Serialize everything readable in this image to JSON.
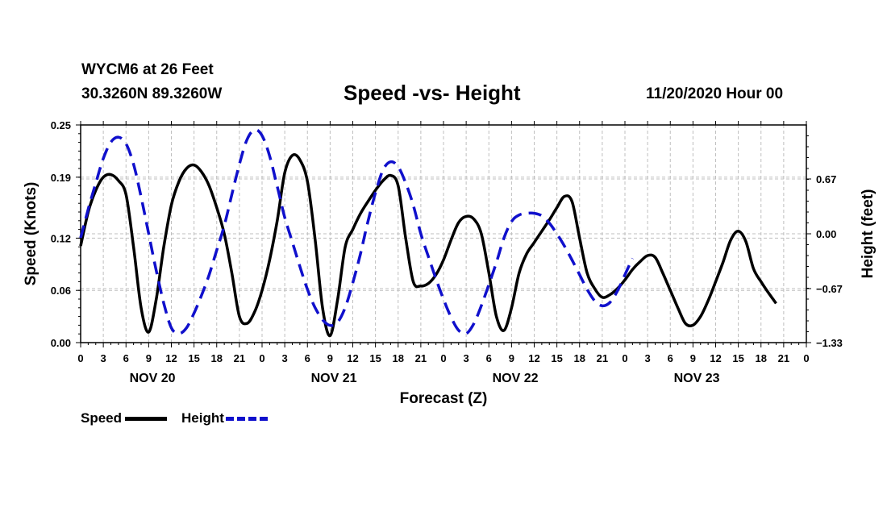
{
  "header": {
    "station": "WYCM6 at 26 Feet",
    "coords": "30.3260N 89.3260W",
    "title": "Speed -vs- Height",
    "run_time": "11/20/2020 Hour 00"
  },
  "colors": {
    "speed": "#000000",
    "height": "#1010cc",
    "grid": "#bfbfbf"
  },
  "legend": {
    "speed_label": "Speed",
    "height_label": "Height"
  },
  "chart_data": {
    "type": "line",
    "title": "Speed -vs- Height",
    "xlabel": "Forecast (Z)",
    "ylabel": "Speed (Knots)",
    "y2label": "Height (feet)",
    "xlim": [
      0,
      96
    ],
    "ylim": [
      0.0,
      0.25
    ],
    "y2lim": [
      -1.33,
      1.33
    ],
    "grid": true,
    "legend_position": "bottom-left",
    "x_ticks": [
      0,
      3,
      6,
      9,
      12,
      15,
      18,
      21,
      24,
      27,
      30,
      33,
      36,
      39,
      42,
      45,
      48,
      51,
      54,
      57,
      60,
      63,
      66,
      69,
      72,
      75,
      78,
      81,
      84,
      87,
      90,
      93,
      96
    ],
    "x_tick_labels": [
      "0",
      "3",
      "6",
      "9",
      "12",
      "15",
      "18",
      "21",
      "0",
      "3",
      "6",
      "9",
      "12",
      "15",
      "18",
      "21",
      "0",
      "3",
      "6",
      "9",
      "12",
      "15",
      "18",
      "21",
      "0",
      "3",
      "6",
      "9",
      "12",
      "15",
      "18",
      "21",
      "0"
    ],
    "y_ticks": [
      0.0,
      0.06,
      0.12,
      0.19,
      0.25
    ],
    "y_tick_labels": [
      "0.00",
      "0.06",
      "0.12",
      "0.19",
      "0.25"
    ],
    "y2_ticks": [
      -1.33,
      -0.67,
      0.0,
      0.67
    ],
    "y2_tick_labels": [
      "−1.33",
      "−0.67",
      "0.00",
      "0.67"
    ],
    "day_labels": [
      {
        "x": 9.5,
        "label": "NOV 20"
      },
      {
        "x": 33.5,
        "label": "NOV 21"
      },
      {
        "x": 57.5,
        "label": "NOV 22"
      },
      {
        "x": 81.5,
        "label": "NOV 23"
      }
    ],
    "series": [
      {
        "name": "Speed",
        "axis": "left",
        "style": "solid",
        "points": [
          [
            0,
            0.111
          ],
          [
            1,
            0.15
          ],
          [
            2,
            0.175
          ],
          [
            3,
            0.19
          ],
          [
            4,
            0.193
          ],
          [
            5,
            0.186
          ],
          [
            6,
            0.17
          ],
          [
            7,
            0.11
          ],
          [
            8,
            0.04
          ],
          [
            9,
            0.012
          ],
          [
            10,
            0.05
          ],
          [
            11,
            0.11
          ],
          [
            12,
            0.158
          ],
          [
            13,
            0.185
          ],
          [
            14,
            0.2
          ],
          [
            15,
            0.204
          ],
          [
            16,
            0.196
          ],
          [
            17,
            0.18
          ],
          [
            18,
            0.155
          ],
          [
            19,
            0.125
          ],
          [
            20,
            0.08
          ],
          [
            21,
            0.03
          ],
          [
            22,
            0.022
          ],
          [
            23,
            0.035
          ],
          [
            24,
            0.06
          ],
          [
            25,
            0.095
          ],
          [
            26,
            0.14
          ],
          [
            27,
            0.195
          ],
          [
            28,
            0.215
          ],
          [
            29,
            0.21
          ],
          [
            30,
            0.185
          ],
          [
            31,
            0.12
          ],
          [
            32,
            0.04
          ],
          [
            33,
            0.008
          ],
          [
            34,
            0.05
          ],
          [
            35,
            0.11
          ],
          [
            36,
            0.13
          ],
          [
            37,
            0.148
          ],
          [
            38,
            0.162
          ],
          [
            39,
            0.175
          ],
          [
            40,
            0.186
          ],
          [
            41,
            0.192
          ],
          [
            42,
            0.18
          ],
          [
            43,
            0.12
          ],
          [
            44,
            0.07
          ],
          [
            45,
            0.065
          ],
          [
            46,
            0.068
          ],
          [
            47,
            0.078
          ],
          [
            48,
            0.095
          ],
          [
            49,
            0.118
          ],
          [
            50,
            0.138
          ],
          [
            51,
            0.145
          ],
          [
            52,
            0.142
          ],
          [
            53,
            0.125
          ],
          [
            54,
            0.08
          ],
          [
            55,
            0.03
          ],
          [
            56,
            0.014
          ],
          [
            57,
            0.04
          ],
          [
            58,
            0.08
          ],
          [
            59,
            0.102
          ],
          [
            60,
            0.115
          ],
          [
            61,
            0.128
          ],
          [
            62,
            0.141
          ],
          [
            63,
            0.155
          ],
          [
            64,
            0.168
          ],
          [
            65,
            0.162
          ],
          [
            66,
            0.12
          ],
          [
            67,
            0.08
          ],
          [
            68,
            0.062
          ],
          [
            69,
            0.052
          ],
          [
            70,
            0.055
          ],
          [
            71,
            0.062
          ],
          [
            72,
            0.072
          ],
          [
            73,
            0.084
          ],
          [
            74,
            0.093
          ],
          [
            75,
            0.1
          ],
          [
            76,
            0.098
          ],
          [
            77,
            0.08
          ],
          [
            78,
            0.06
          ],
          [
            79,
            0.04
          ],
          [
            80,
            0.022
          ],
          [
            81,
            0.02
          ],
          [
            82,
            0.03
          ],
          [
            83,
            0.048
          ],
          [
            84,
            0.07
          ],
          [
            85,
            0.093
          ],
          [
            86,
            0.118
          ],
          [
            87,
            0.128
          ],
          [
            88,
            0.116
          ],
          [
            89,
            0.085
          ],
          [
            90,
            0.07
          ],
          [
            91,
            0.057
          ],
          [
            92,
            0.045
          ]
        ]
      },
      {
        "name": "Height",
        "axis": "right",
        "style": "dashed",
        "points": [
          [
            0,
            -0.05
          ],
          [
            1,
            0.3
          ],
          [
            2,
            0.62
          ],
          [
            3,
            0.92
          ],
          [
            4,
            1.12
          ],
          [
            5,
            1.18
          ],
          [
            6,
            1.1
          ],
          [
            7,
            0.85
          ],
          [
            8,
            0.45
          ],
          [
            9,
            0.0
          ],
          [
            10,
            -0.45
          ],
          [
            11,
            -0.85
          ],
          [
            12,
            -1.15
          ],
          [
            13,
            -1.22
          ],
          [
            14,
            -1.15
          ],
          [
            15,
            -0.97
          ],
          [
            16,
            -0.75
          ],
          [
            17,
            -0.5
          ],
          [
            18,
            -0.2
          ],
          [
            19,
            0.1
          ],
          [
            20,
            0.48
          ],
          [
            21,
            0.85
          ],
          [
            22,
            1.15
          ],
          [
            23,
            1.27
          ],
          [
            24,
            1.2
          ],
          [
            25,
            0.95
          ],
          [
            26,
            0.58
          ],
          [
            27,
            0.2
          ],
          [
            28,
            -0.1
          ],
          [
            29,
            -0.4
          ],
          [
            30,
            -0.68
          ],
          [
            31,
            -0.9
          ],
          [
            32,
            -1.05
          ],
          [
            33,
            -1.12
          ],
          [
            34,
            -1.08
          ],
          [
            35,
            -0.9
          ],
          [
            36,
            -0.6
          ],
          [
            37,
            -0.25
          ],
          [
            38,
            0.15
          ],
          [
            39,
            0.5
          ],
          [
            40,
            0.78
          ],
          [
            41,
            0.88
          ],
          [
            42,
            0.82
          ],
          [
            43,
            0.62
          ],
          [
            44,
            0.35
          ],
          [
            45,
            0.0
          ],
          [
            46,
            -0.28
          ],
          [
            47,
            -0.55
          ],
          [
            48,
            -0.8
          ],
          [
            49,
            -1.02
          ],
          [
            50,
            -1.18
          ],
          [
            51,
            -1.22
          ],
          [
            52,
            -1.1
          ],
          [
            53,
            -0.88
          ],
          [
            54,
            -0.62
          ],
          [
            55,
            -0.35
          ],
          [
            56,
            -0.05
          ],
          [
            57,
            0.15
          ],
          [
            58,
            0.23
          ],
          [
            59,
            0.25
          ],
          [
            60,
            0.25
          ],
          [
            61,
            0.22
          ],
          [
            62,
            0.13
          ],
          [
            63,
            0.0
          ],
          [
            64,
            -0.15
          ],
          [
            65,
            -0.32
          ],
          [
            66,
            -0.5
          ],
          [
            67,
            -0.68
          ],
          [
            68,
            -0.82
          ],
          [
            69,
            -0.88
          ],
          [
            70,
            -0.84
          ],
          [
            71,
            -0.7
          ],
          [
            72,
            -0.5
          ],
          [
            73,
            -0.3
          ]
        ]
      }
    ]
  }
}
